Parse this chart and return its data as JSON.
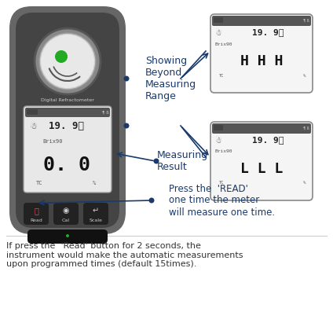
{
  "bg_color": "#ffffff",
  "device_color": "#5a5a5a",
  "device_inner": "#3a3a3a",
  "screen_bg": "#f0f0f0",
  "text_color": "#1a3a6b",
  "annotation_color": "#1a3a6b",
  "bottom_text": "If press the  'Read' button for 2 seconds, the\ninstrument would make the automatic measurements\nupon programmed times (default 15times).",
  "label_showing": "Showing\nBeyond\nMeasuring\nRange",
  "label_measuring": "Measuring\nResult",
  "label_press": "Press the  'READ'\none time the meter\nwill measure one time.",
  "display_top_temp": "19. 9℃",
  "display_brix": "Brix90",
  "display_main_value": "0. 0",
  "display_HHH": "H H H",
  "display_LLL": "L L L",
  "display_tc": "TC",
  "display_percent": "%"
}
